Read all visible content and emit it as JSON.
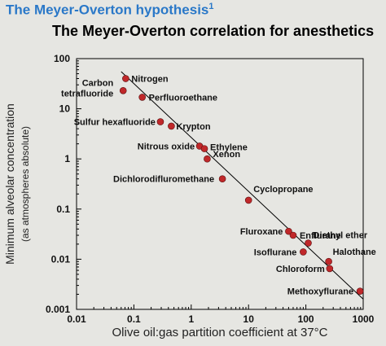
{
  "header": {
    "title": "The Meyer-Overton hypothesis",
    "superscript": "1"
  },
  "chart_data": {
    "type": "scatter",
    "title": "The Meyer-Overton correlation for anesthetics",
    "xlabel": "Olive oil:gas partition coefficient at 37°C",
    "ylabel": "Minimum alveolar concentration",
    "ylabel2": "(as atmospheres absolute)",
    "xscale": "log",
    "yscale": "log",
    "xlim": [
      0.01,
      1000
    ],
    "ylim": [
      0.001,
      100
    ],
    "xticks": [
      "0.01",
      "0.1",
      "1",
      "10",
      "100",
      "1000"
    ],
    "yticks": [
      "100",
      "10",
      "1",
      "0.1",
      "0.01",
      "0.001"
    ],
    "grid": false,
    "point_color": "#c0282a",
    "fit_line": {
      "x": [
        0.06,
        1000
      ],
      "y": [
        55,
        0.0016
      ]
    },
    "points": [
      {
        "label": "Nitrogen",
        "x": 0.072,
        "y": 40
      },
      {
        "label": "Carbon tetrafluoride",
        "x": 0.065,
        "y": 23
      },
      {
        "label": "Perfluoroethane",
        "x": 0.14,
        "y": 17
      },
      {
        "label": "Sulfur hexafluoride",
        "x": 0.29,
        "y": 5.5
      },
      {
        "label": "Krypton",
        "x": 0.45,
        "y": 4.5
      },
      {
        "label": "Nitrous oxide",
        "x": 1.4,
        "y": 1.8
      },
      {
        "label": "Ethylene",
        "x": 1.7,
        "y": 1.6
      },
      {
        "label": "Xenon",
        "x": 1.9,
        "y": 1.0
      },
      {
        "label": "Dichlorodifluromethane",
        "x": 3.5,
        "y": 0.4
      },
      {
        "label": "Cyclopropane",
        "x": 10,
        "y": 0.15
      },
      {
        "label": "Fluroxane",
        "x": 50,
        "y": 0.036
      },
      {
        "label": "Enflurane",
        "x": 60,
        "y": 0.03
      },
      {
        "label": "Diethyl ether",
        "x": 110,
        "y": 0.021
      },
      {
        "label": "Isoflurane",
        "x": 90,
        "y": 0.014
      },
      {
        "label": "Halothane",
        "x": 250,
        "y": 0.009
      },
      {
        "label": "Chloroform",
        "x": 260,
        "y": 0.0065
      },
      {
        "label": "Methoxyflurane",
        "x": 880,
        "y": 0.0023
      }
    ]
  }
}
